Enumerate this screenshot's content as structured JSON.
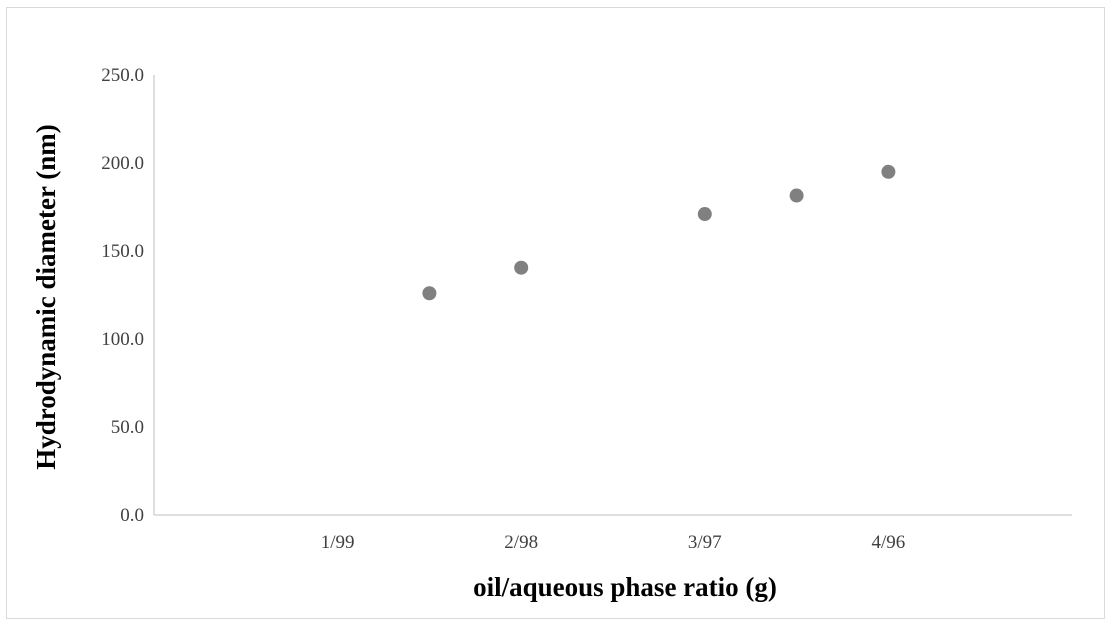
{
  "chart_data": {
    "type": "scatter",
    "title": "",
    "xlabel": "oil/aqueous phase ratio (g)",
    "ylabel": "Hydrodynamic diameter (nm)",
    "x_tick_labels": [
      "1/99",
      "2/98",
      "3/97",
      "4/96"
    ],
    "x_tick_values": [
      1,
      2,
      3,
      4
    ],
    "xlim": [
      0,
      5
    ],
    "y_tick_labels": [
      "0.0",
      "50.0",
      "100.0",
      "150.0",
      "200.0",
      "250.0"
    ],
    "ylim": [
      0,
      250
    ],
    "grid": false,
    "legend": "none",
    "marker_color": "#808080",
    "axis_color": "#bfbfbf",
    "series": [
      {
        "x": [
          1.5,
          2.0,
          3.0,
          3.5,
          4.0
        ],
        "y": [
          126.0,
          140.5,
          171.0,
          181.5,
          195.0
        ]
      }
    ]
  }
}
